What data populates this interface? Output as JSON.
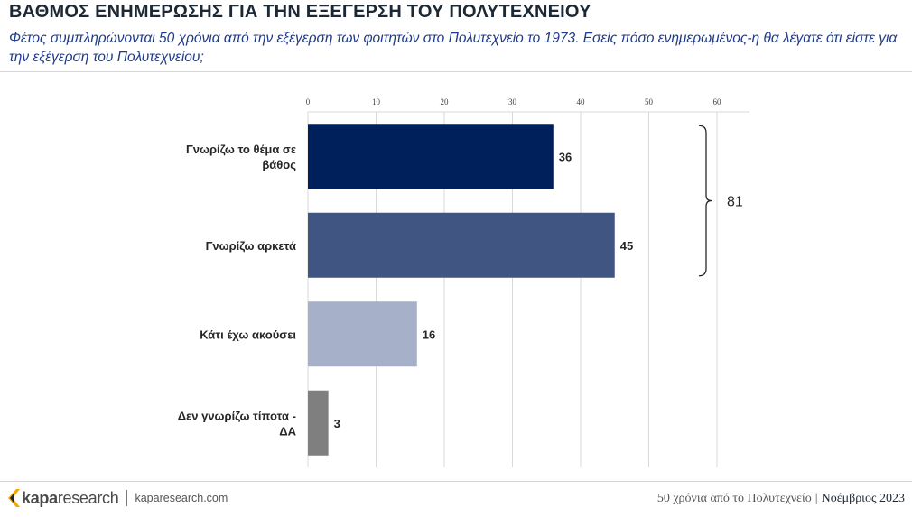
{
  "header": {
    "title": "ΒΑΘΜΟΣ ΕΝΗΜΕΡΩΣΗΣ ΓΙΑ ΤΗΝ ΕΞΕΓΕΡΣΗ ΤΟΥ ΠΟΛΥΤΕΧΝΕΙΟΥ",
    "subtitle": "Φέτος συμπληρώνονται 50 χρόνια από την εξέγερση των φοιτητών στο Πολυτεχνείο το 1973. Εσείς πόσο ενημερωμένος-η θα λέγατε ότι είστε για την εξέγερση του Πολυτεχνείου;"
  },
  "chart_data": {
    "type": "bar",
    "orientation": "horizontal",
    "categories": [
      "Γνωρίζω το θέμα σε βάθος",
      "Γνωρίζω αρκετά",
      "Κάτι έχω ακούσει",
      "Δεν γνωρίζω τίποτα - ΔΑ"
    ],
    "values": [
      36,
      45,
      16,
      3
    ],
    "colors": [
      "#00205b",
      "#415582",
      "#a6b1c9",
      "#7f7f7f"
    ],
    "xlim": [
      0,
      60
    ],
    "xticks": [
      0,
      10,
      20,
      30,
      40,
      50,
      60
    ],
    "grid": true,
    "annotation": {
      "label": "81",
      "spans": [
        "Γνωρίζω το θέμα σε βάθος",
        "Γνωρίζω αρκετά"
      ]
    }
  },
  "footer": {
    "brand_light_1": "kapa",
    "brand_light_2": "research",
    "website": "kaparesearch.com",
    "caption": "50 χρόνια από το Πολυτεχνείο",
    "separator": "|",
    "date": "Νοέμβριος 2023"
  },
  "colors": {
    "title": "#1c2833",
    "subtitle": "#1f3a8a",
    "logo_mark": "#f2a900"
  }
}
